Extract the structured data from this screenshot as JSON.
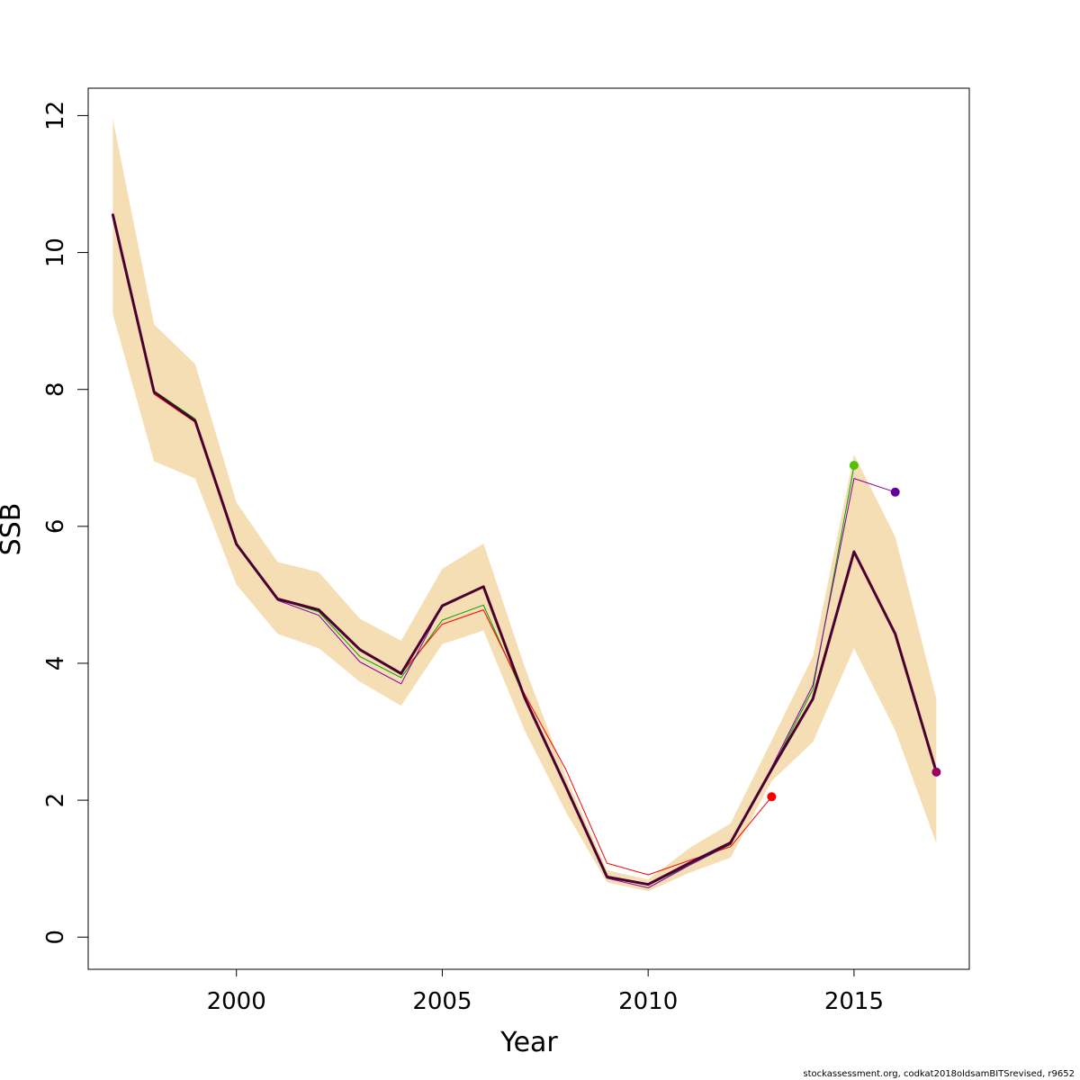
{
  "chart_data": {
    "type": "line",
    "xlabel": "Year",
    "ylabel": "SSB",
    "xlim": [
      1996.4,
      2017.8
    ],
    "ylim": [
      -0.47,
      12.4
    ],
    "x_ticks": [
      2000,
      2005,
      2010,
      2015
    ],
    "y_ticks": [
      0,
      2,
      4,
      6,
      8,
      10,
      12
    ],
    "x_tick_labels": [
      "2000",
      "2005",
      "2010",
      "2015"
    ],
    "y_tick_labels": [
      "0",
      "2",
      "4",
      "6",
      "8",
      "10",
      "12"
    ],
    "grid": false,
    "legend": "none",
    "confidence_band": {
      "color": "#f5deb3",
      "x": [
        1997,
        1998,
        1999,
        2000,
        2001,
        2002,
        2003,
        2004,
        2005,
        2006,
        2007,
        2008,
        2009,
        2010,
        2011,
        2012,
        2013,
        2014,
        2015,
        2016,
        2017
      ],
      "upper": [
        11.95,
        8.95,
        8.37,
        6.35,
        5.48,
        5.33,
        4.65,
        4.33,
        5.38,
        5.75,
        3.95,
        2.35,
        0.98,
        0.84,
        1.3,
        1.66,
        2.87,
        4.1,
        7.05,
        5.85,
        3.48
      ],
      "lower": [
        9.1,
        6.95,
        6.7,
        5.15,
        4.43,
        4.22,
        3.73,
        3.38,
        4.28,
        4.48,
        3.02,
        1.83,
        0.8,
        0.67,
        0.94,
        1.16,
        2.28,
        2.85,
        4.22,
        3.02,
        1.37
      ]
    },
    "series": [
      {
        "color": "#00a000",
        "width": 1,
        "x": [
          1997,
          1998,
          1999,
          2000,
          2001,
          2002,
          2003,
          2004,
          2005,
          2006,
          2007,
          2008,
          2009,
          2010,
          2011,
          2012,
          2013,
          2014,
          2015
        ],
        "y": [
          10.52,
          7.98,
          7.57,
          5.76,
          4.94,
          4.75,
          4.1,
          3.79,
          4.63,
          4.85,
          3.5,
          2.2,
          0.88,
          0.76,
          1.05,
          1.35,
          2.45,
          3.62,
          6.88
        ]
      },
      {
        "color": "#ff0000",
        "width": 1,
        "x": [
          1997,
          1998,
          1999,
          2000,
          2001,
          2002,
          2003,
          2004,
          2005,
          2006,
          2007,
          2008,
          2009,
          2010,
          2011,
          2012,
          2013
        ],
        "y": [
          10.55,
          7.93,
          7.52,
          5.73,
          4.93,
          4.77,
          4.2,
          3.85,
          4.57,
          4.78,
          3.55,
          2.45,
          1.08,
          0.91,
          1.12,
          1.32,
          2.05
        ]
      },
      {
        "color": "#8000a0",
        "width": 1,
        "x": [
          1997,
          1998,
          1999,
          2000,
          2001,
          2002,
          2003,
          2004,
          2005,
          2006,
          2007,
          2008,
          2009,
          2010,
          2011,
          2012,
          2013,
          2014,
          2015,
          2016
        ],
        "y": [
          10.5,
          7.95,
          7.54,
          5.75,
          4.92,
          4.7,
          4.02,
          3.7,
          4.84,
          5.12,
          3.5,
          2.2,
          0.86,
          0.72,
          1.05,
          1.36,
          2.48,
          3.68,
          6.7,
          6.5
        ]
      },
      {
        "color": "#4a0030",
        "width": 3,
        "x": [
          1997,
          1998,
          1999,
          2000,
          2001,
          2002,
          2003,
          2004,
          2005,
          2006,
          2007,
          2008,
          2009,
          2010,
          2011,
          2012,
          2013,
          2014,
          2015,
          2016,
          2017
        ],
        "y": [
          10.55,
          7.96,
          7.54,
          5.74,
          4.94,
          4.78,
          4.2,
          3.85,
          4.84,
          5.12,
          3.5,
          2.2,
          0.88,
          0.77,
          1.08,
          1.38,
          2.45,
          3.48,
          5.63,
          4.43,
          2.41
        ]
      }
    ],
    "end_points": [
      {
        "x": 2013,
        "y": 2.05,
        "color": "#ff0000"
      },
      {
        "x": 2015,
        "y": 6.89,
        "color": "#55c000"
      },
      {
        "x": 2016,
        "y": 6.5,
        "color": "#660099"
      },
      {
        "x": 2017,
        "y": 2.41,
        "color": "#990066"
      }
    ]
  },
  "footer": "stockassessment.org, codkat2018oldsamBITSrevised, r9652"
}
